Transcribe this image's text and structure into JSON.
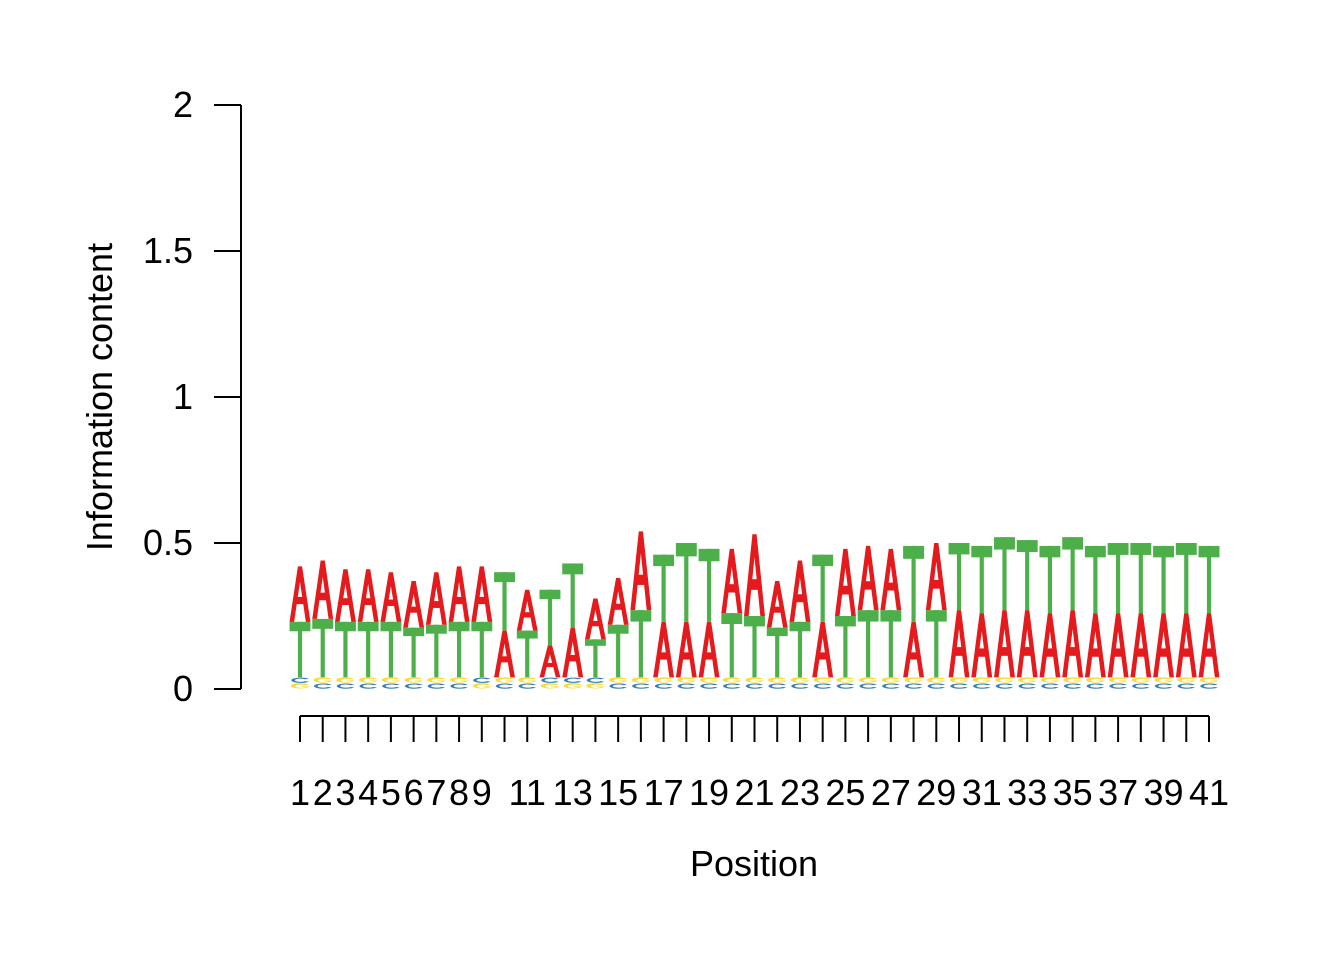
{
  "chart_data": {
    "type": "sequence-logo",
    "xlabel": "Position",
    "ylabel": "Information content",
    "ylim": [
      0,
      2
    ],
    "y_ticks": [
      "0",
      "0.5",
      "1",
      "1.5",
      "2"
    ],
    "x_tick_labels": [
      "1",
      "2",
      "3",
      "4",
      "5",
      "6",
      "7",
      "8",
      "9",
      "11",
      "13",
      "15",
      "17",
      "19",
      "21",
      "23",
      "25",
      "27",
      "29",
      "31",
      "33",
      "35",
      "37",
      "39",
      "41"
    ],
    "positions": [
      1,
      2,
      3,
      4,
      5,
      6,
      7,
      8,
      9,
      10,
      11,
      12,
      13,
      14,
      15,
      16,
      17,
      18,
      19,
      20,
      21,
      22,
      23,
      24,
      25,
      26,
      27,
      28,
      29,
      30,
      31,
      32,
      33,
      34,
      35,
      36,
      37,
      38,
      39,
      40,
      41
    ],
    "grid": false,
    "colors": {
      "A": "#e41a1c",
      "T": "#4daf4a",
      "C": "#377eb8",
      "G": "#f7dc3b"
    },
    "stacks": [
      [
        [
          "G",
          0.02
        ],
        [
          "C",
          0.02
        ],
        [
          "T",
          0.19
        ],
        [
          "A",
          0.19
        ]
      ],
      [
        [
          "C",
          0.02
        ],
        [
          "G",
          0.02
        ],
        [
          "T",
          0.2
        ],
        [
          "A",
          0.2
        ]
      ],
      [
        [
          "C",
          0.02
        ],
        [
          "G",
          0.02
        ],
        [
          "T",
          0.19
        ],
        [
          "A",
          0.18
        ]
      ],
      [
        [
          "C",
          0.02
        ],
        [
          "G",
          0.02
        ],
        [
          "T",
          0.19
        ],
        [
          "A",
          0.18
        ]
      ],
      [
        [
          "C",
          0.02
        ],
        [
          "G",
          0.02
        ],
        [
          "T",
          0.19
        ],
        [
          "A",
          0.17
        ]
      ],
      [
        [
          "C",
          0.02
        ],
        [
          "G",
          0.02
        ],
        [
          "T",
          0.17
        ],
        [
          "A",
          0.16
        ]
      ],
      [
        [
          "C",
          0.02
        ],
        [
          "G",
          0.02
        ],
        [
          "T",
          0.18
        ],
        [
          "A",
          0.18
        ]
      ],
      [
        [
          "C",
          0.02
        ],
        [
          "G",
          0.02
        ],
        [
          "T",
          0.19
        ],
        [
          "A",
          0.19
        ]
      ],
      [
        [
          "G",
          0.02
        ],
        [
          "C",
          0.02
        ],
        [
          "T",
          0.19
        ],
        [
          "A",
          0.19
        ]
      ],
      [
        [
          "C",
          0.02
        ],
        [
          "G",
          0.02
        ],
        [
          "A",
          0.16
        ],
        [
          "T",
          0.2
        ]
      ],
      [
        [
          "C",
          0.02
        ],
        [
          "G",
          0.02
        ],
        [
          "T",
          0.16
        ],
        [
          "A",
          0.14
        ]
      ],
      [
        [
          "G",
          0.02
        ],
        [
          "C",
          0.02
        ],
        [
          "A",
          0.11
        ],
        [
          "T",
          0.19
        ]
      ],
      [
        [
          "G",
          0.02
        ],
        [
          "C",
          0.02
        ],
        [
          "A",
          0.17
        ],
        [
          "T",
          0.22
        ]
      ],
      [
        [
          "G",
          0.02
        ],
        [
          "C",
          0.02
        ],
        [
          "T",
          0.13
        ],
        [
          "A",
          0.14
        ]
      ],
      [
        [
          "C",
          0.02
        ],
        [
          "G",
          0.02
        ],
        [
          "T",
          0.18
        ],
        [
          "A",
          0.16
        ]
      ],
      [
        [
          "C",
          0.02
        ],
        [
          "G",
          0.02
        ],
        [
          "T",
          0.23
        ],
        [
          "A",
          0.27
        ]
      ],
      [
        [
          "C",
          0.02
        ],
        [
          "G",
          0.02
        ],
        [
          "A",
          0.19
        ],
        [
          "T",
          0.23
        ]
      ],
      [
        [
          "C",
          0.02
        ],
        [
          "G",
          0.02
        ],
        [
          "A",
          0.19
        ],
        [
          "T",
          0.27
        ]
      ],
      [
        [
          "C",
          0.02
        ],
        [
          "G",
          0.02
        ],
        [
          "A",
          0.19
        ],
        [
          "T",
          0.25
        ]
      ],
      [
        [
          "C",
          0.02
        ],
        [
          "G",
          0.02
        ],
        [
          "T",
          0.22
        ],
        [
          "A",
          0.22
        ]
      ],
      [
        [
          "C",
          0.02
        ],
        [
          "G",
          0.02
        ],
        [
          "T",
          0.21
        ],
        [
          "A",
          0.28
        ]
      ],
      [
        [
          "C",
          0.02
        ],
        [
          "G",
          0.02
        ],
        [
          "T",
          0.17
        ],
        [
          "A",
          0.16
        ]
      ],
      [
        [
          "C",
          0.02
        ],
        [
          "G",
          0.02
        ],
        [
          "T",
          0.19
        ],
        [
          "A",
          0.21
        ]
      ],
      [
        [
          "C",
          0.02
        ],
        [
          "G",
          0.02
        ],
        [
          "A",
          0.19
        ],
        [
          "T",
          0.23
        ]
      ],
      [
        [
          "C",
          0.02
        ],
        [
          "G",
          0.02
        ],
        [
          "T",
          0.21
        ],
        [
          "A",
          0.23
        ]
      ],
      [
        [
          "C",
          0.02
        ],
        [
          "G",
          0.02
        ],
        [
          "T",
          0.23
        ],
        [
          "A",
          0.22
        ]
      ],
      [
        [
          "C",
          0.02
        ],
        [
          "G",
          0.02
        ],
        [
          "T",
          0.23
        ],
        [
          "A",
          0.21
        ]
      ],
      [
        [
          "C",
          0.02
        ],
        [
          "G",
          0.02
        ],
        [
          "A",
          0.19
        ],
        [
          "T",
          0.26
        ]
      ],
      [
        [
          "C",
          0.02
        ],
        [
          "G",
          0.02
        ],
        [
          "T",
          0.23
        ],
        [
          "A",
          0.23
        ]
      ],
      [
        [
          "C",
          0.02
        ],
        [
          "G",
          0.02
        ],
        [
          "A",
          0.23
        ],
        [
          "T",
          0.23
        ]
      ],
      [
        [
          "C",
          0.02
        ],
        [
          "G",
          0.02
        ],
        [
          "A",
          0.22
        ],
        [
          "T",
          0.23
        ]
      ],
      [
        [
          "C",
          0.02
        ],
        [
          "G",
          0.02
        ],
        [
          "A",
          0.23
        ],
        [
          "T",
          0.25
        ]
      ],
      [
        [
          "C",
          0.02
        ],
        [
          "G",
          0.02
        ],
        [
          "A",
          0.23
        ],
        [
          "T",
          0.24
        ]
      ],
      [
        [
          "C",
          0.02
        ],
        [
          "G",
          0.02
        ],
        [
          "A",
          0.22
        ],
        [
          "T",
          0.23
        ]
      ],
      [
        [
          "C",
          0.02
        ],
        [
          "G",
          0.02
        ],
        [
          "A",
          0.23
        ],
        [
          "T",
          0.25
        ]
      ],
      [
        [
          "C",
          0.02
        ],
        [
          "G",
          0.02
        ],
        [
          "A",
          0.22
        ],
        [
          "T",
          0.23
        ]
      ],
      [
        [
          "C",
          0.02
        ],
        [
          "G",
          0.02
        ],
        [
          "A",
          0.22
        ],
        [
          "T",
          0.24
        ]
      ],
      [
        [
          "C",
          0.02
        ],
        [
          "G",
          0.02
        ],
        [
          "A",
          0.22
        ],
        [
          "T",
          0.24
        ]
      ],
      [
        [
          "C",
          0.02
        ],
        [
          "G",
          0.02
        ],
        [
          "A",
          0.22
        ],
        [
          "T",
          0.23
        ]
      ],
      [
        [
          "C",
          0.02
        ],
        [
          "G",
          0.02
        ],
        [
          "A",
          0.22
        ],
        [
          "T",
          0.24
        ]
      ],
      [
        [
          "C",
          0.02
        ],
        [
          "G",
          0.02
        ],
        [
          "A",
          0.22
        ],
        [
          "T",
          0.23
        ]
      ]
    ]
  }
}
